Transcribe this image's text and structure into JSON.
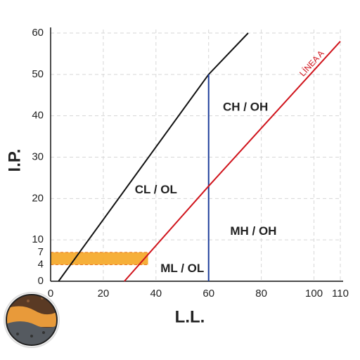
{
  "chart_data": {
    "type": "line",
    "xlabel": "L.L.",
    "ylabel": "I.P.",
    "xlim": [
      0,
      110
    ],
    "ylim": [
      0,
      60
    ],
    "xticks": [
      0,
      20,
      40,
      60,
      80,
      100,
      110
    ],
    "yticks": [
      0,
      10,
      20,
      30,
      40,
      50,
      60
    ],
    "highlight_yticks": [
      4,
      7
    ],
    "highlight_color": "#e8731a",
    "grid": true,
    "band": {
      "x": [
        0,
        37
      ],
      "y": [
        4,
        7
      ],
      "color": "#f5a623"
    },
    "series": [
      {
        "color": "#111111",
        "x": [
          3,
          60,
          75
        ],
        "values": [
          0,
          50,
          60
        ]
      },
      {
        "color": "#1f3f9a",
        "x": [
          60,
          60
        ],
        "values": [
          0,
          50
        ]
      },
      {
        "name": "LÍNEA A",
        "color": "#d0141c",
        "x": [
          28,
          60,
          110
        ],
        "values": [
          0,
          23,
          58
        ]
      }
    ],
    "annotations": [
      {
        "text": "CL / OL",
        "x": 40,
        "y": 22
      },
      {
        "text": "CH / OH",
        "x": 74,
        "y": 42
      },
      {
        "text": "MH / OH",
        "x": 77,
        "y": 12
      },
      {
        "text": "ML / OL",
        "x": 50,
        "y": 3
      }
    ]
  }
}
